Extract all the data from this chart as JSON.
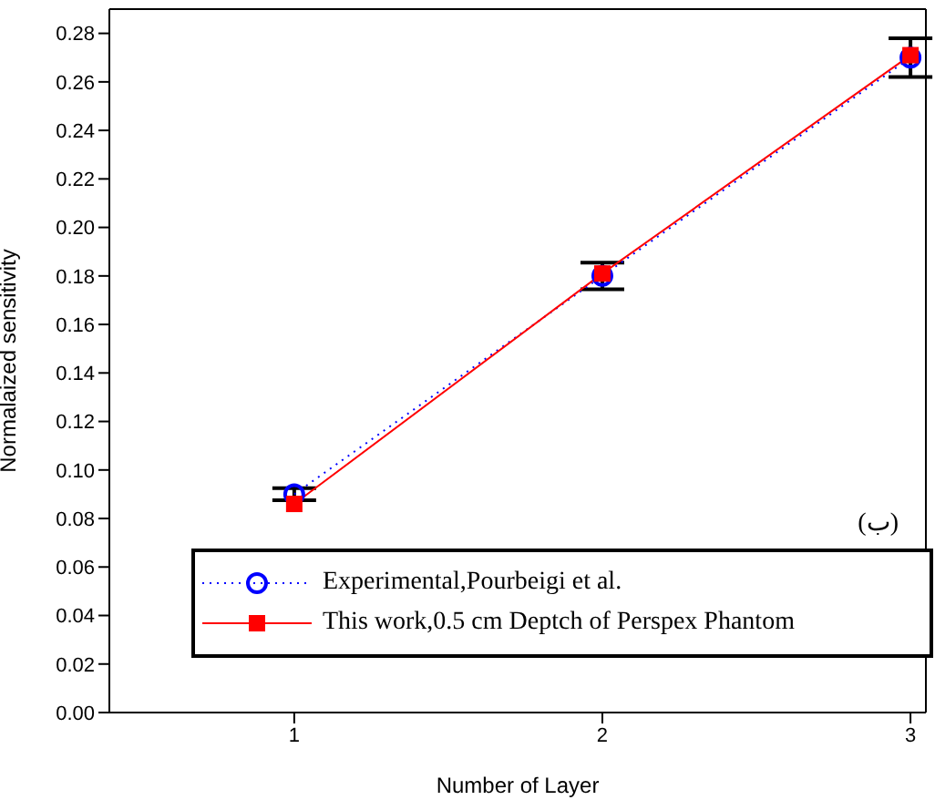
{
  "chart_data": {
    "type": "line",
    "xlabel": "Number of Layer",
    "ylabel": "Normalaized sensitivity",
    "x": [
      1,
      2,
      3
    ],
    "xlim": [
      0.4,
      3.05
    ],
    "xticks": [
      1,
      2,
      3
    ],
    "ylim": [
      0,
      0.29
    ],
    "yticks": [
      {
        "value": 0,
        "label": "0.00"
      },
      {
        "value": 0.02,
        "label": "0.02"
      },
      {
        "value": 0.04,
        "label": "0.04"
      },
      {
        "value": 0.06,
        "label": "0.06"
      },
      {
        "value": 0.08,
        "label": "0.08"
      },
      {
        "value": 0.1,
        "label": "0.10"
      },
      {
        "value": 0.12,
        "label": "0.12"
      },
      {
        "value": 0.14,
        "label": "0.14"
      },
      {
        "value": 0.16,
        "label": "0.16"
      },
      {
        "value": 0.18,
        "label": "0.18"
      },
      {
        "value": 0.2,
        "label": "0.20"
      },
      {
        "value": 0.22,
        "label": "0.22"
      },
      {
        "value": 0.24,
        "label": "0.24"
      },
      {
        "value": 0.26,
        "label": "0.26"
      },
      {
        "value": 0.28,
        "label": "0.28"
      }
    ],
    "series": [
      {
        "name": "Experimental,Pourbeigi et al.",
        "color": "#0000ff",
        "values": [
          0.09,
          0.18,
          0.27
        ],
        "errors": [
          0.0025,
          0.0055,
          0.008
        ],
        "marker": "circle",
        "line_style": "dotted"
      },
      {
        "name": "This work,0.5 cm Deptch of Perspex Phantom",
        "color": "#ff0000",
        "values": [
          0.086,
          0.181,
          0.271
        ],
        "marker": "square",
        "line_style": "solid"
      }
    ],
    "annotations": [
      "(ب)"
    ],
    "legend": "bottom"
  }
}
